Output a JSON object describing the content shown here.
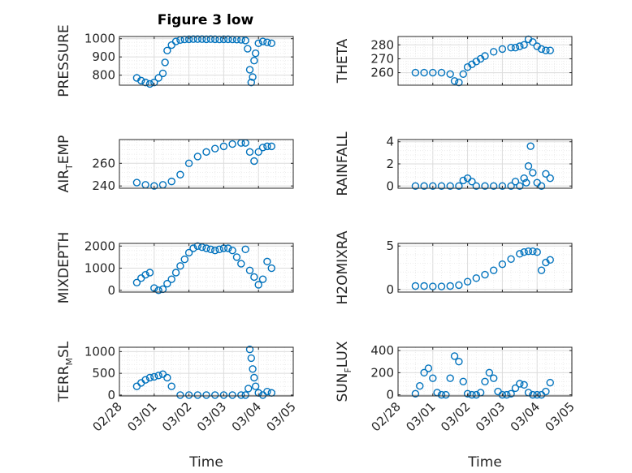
{
  "figure": {
    "title": "Figure 3 low",
    "marker_color": "#0072BD"
  },
  "chart_data": [
    {
      "type": "scatter",
      "ylabel": "PRESSURE",
      "xlabel": "",
      "title": "Figure 3 low",
      "grid": true,
      "ylim": [
        745,
        1012
      ],
      "yticks": [
        800,
        900,
        1000
      ],
      "xlim": [
        "02/28",
        "03/05"
      ],
      "xticks": [
        "02/28",
        "03/01",
        "03/02",
        "03/03",
        "03/04",
        "03/05"
      ],
      "x": [
        "02/28 12:00",
        "02/28 15:00",
        "02/28 18:00",
        "02/28 21:00",
        "03/01 00:00",
        "03/01 03:00",
        "03/01 06:00",
        "03/01 07:30",
        "03/01 09:00",
        "03/01 12:00",
        "03/01 15:00",
        "03/01 18:00",
        "03/01 21:00",
        "03/02 00:00",
        "03/02 03:00",
        "03/02 06:00",
        "03/02 09:00",
        "03/02 12:00",
        "03/02 15:00",
        "03/02 18:00",
        "03/02 21:00",
        "03/03 00:00",
        "03/03 03:00",
        "03/03 06:00",
        "03/03 09:00",
        "03/03 12:00",
        "03/03 15:00",
        "03/03 16:30",
        "03/03 18:00",
        "03/03 19:00",
        "03/03 20:00",
        "03/03 21:00",
        "03/03 22:00",
        "03/04 00:00",
        "03/04 03:00",
        "03/04 06:00",
        "03/04 09:00"
      ],
      "y": [
        785,
        770,
        760,
        752,
        760,
        785,
        810,
        870,
        935,
        965,
        985,
        993,
        996,
        997,
        998,
        998,
        998,
        997,
        998,
        997,
        996,
        997,
        997,
        996,
        995,
        994,
        990,
        945,
        830,
        760,
        790,
        880,
        920,
        975,
        985,
        980,
        975
      ]
    },
    {
      "type": "scatter",
      "ylabel": "THETA",
      "xlabel": "",
      "grid": true,
      "ylim": [
        251,
        286
      ],
      "yticks": [
        260,
        270,
        280
      ],
      "xlim": [
        "02/28",
        "03/05"
      ],
      "xticks": [
        "02/28",
        "03/01",
        "03/02",
        "03/03",
        "03/04",
        "03/05"
      ],
      "x": [
        "02/28 12:00",
        "02/28 18:00",
        "03/01 00:00",
        "03/01 06:00",
        "03/01 12:00",
        "03/01 15:00",
        "03/01 18:00",
        "03/01 21:00",
        "03/02 00:00",
        "03/02 03:00",
        "03/02 06:00",
        "03/02 09:00",
        "03/02 12:00",
        "03/02 18:00",
        "03/03 00:00",
        "03/03 06:00",
        "03/03 09:00",
        "03/03 12:00",
        "03/03 15:00",
        "03/03 18:00",
        "03/03 21:00",
        "03/04 00:00",
        "03/04 03:00",
        "03/04 06:00",
        "03/04 09:00"
      ],
      "y": [
        260,
        260,
        260,
        260,
        259,
        254,
        253,
        259,
        264,
        266,
        268,
        270,
        272,
        275,
        277,
        278,
        278,
        279,
        280,
        284,
        282,
        279,
        277,
        276,
        276
      ]
    },
    {
      "type": "scatter",
      "ylabel": "AIR_TEMP",
      "xlabel": "",
      "grid": true,
      "ylim": [
        238,
        281
      ],
      "yticks": [
        240,
        260
      ],
      "xlim": [
        "02/28",
        "03/05"
      ],
      "xticks": [
        "02/28",
        "03/01",
        "03/02",
        "03/03",
        "03/04",
        "03/05"
      ],
      "x": [
        "02/28 12:00",
        "02/28 18:00",
        "03/01 00:00",
        "03/01 06:00",
        "03/01 12:00",
        "03/01 18:00",
        "03/02 00:00",
        "03/02 06:00",
        "03/02 12:00",
        "03/02 18:00",
        "03/03 00:00",
        "03/03 06:00",
        "03/03 12:00",
        "03/03 15:00",
        "03/03 18:00",
        "03/03 21:00",
        "03/04 00:00",
        "03/04 03:00",
        "03/04 06:00",
        "03/04 09:00"
      ],
      "y": [
        243,
        241,
        240,
        241,
        244,
        250,
        260,
        266,
        270,
        273,
        275,
        277,
        278,
        278,
        270,
        262,
        270,
        274,
        275,
        275
      ]
    },
    {
      "type": "scatter",
      "ylabel": "RAINFALL",
      "xlabel": "",
      "grid": true,
      "ylim": [
        -0.2,
        4.2
      ],
      "yticks": [
        0,
        2,
        4
      ],
      "xlim": [
        "02/28",
        "03/05"
      ],
      "xticks": [
        "02/28",
        "03/01",
        "03/02",
        "03/03",
        "03/04",
        "03/05"
      ],
      "x": [
        "02/28 12:00",
        "02/28 18:00",
        "03/01 00:00",
        "03/01 06:00",
        "03/01 12:00",
        "03/01 18:00",
        "03/01 21:00",
        "03/02 00:00",
        "03/02 03:00",
        "03/02 06:00",
        "03/02 12:00",
        "03/02 18:00",
        "03/03 00:00",
        "03/03 06:00",
        "03/03 09:00",
        "03/03 12:00",
        "03/03 15:00",
        "03/03 16:30",
        "03/03 18:00",
        "03/03 19:30",
        "03/03 21:00",
        "03/04 00:00",
        "03/04 03:00",
        "03/04 06:00",
        "03/04 09:00"
      ],
      "y": [
        0,
        0,
        0,
        0,
        0,
        0,
        0.5,
        0.7,
        0.4,
        0,
        0,
        0,
        0,
        0,
        0.4,
        0,
        0.7,
        0.3,
        1.8,
        3.6,
        1.2,
        0.3,
        0,
        1.1,
        0.7
      ]
    },
    {
      "type": "scatter",
      "ylabel": "MIXDEPTH",
      "xlabel": "",
      "grid": true,
      "ylim": [
        -80,
        2120
      ],
      "yticks": [
        0,
        1000,
        2000
      ],
      "xlim": [
        "02/28",
        "03/05"
      ],
      "xticks": [
        "02/28",
        "03/01",
        "03/02",
        "03/03",
        "03/04",
        "03/05"
      ],
      "x": [
        "02/28 12:00",
        "02/28 15:00",
        "02/28 18:00",
        "02/28 21:00",
        "03/01 00:00",
        "03/01 03:00",
        "03/01 06:00",
        "03/01 09:00",
        "03/01 12:00",
        "03/01 15:00",
        "03/01 18:00",
        "03/01 21:00",
        "03/02 00:00",
        "03/02 03:00",
        "03/02 06:00",
        "03/02 09:00",
        "03/02 12:00",
        "03/02 15:00",
        "03/02 18:00",
        "03/02 21:00",
        "03/03 00:00",
        "03/03 03:00",
        "03/03 06:00",
        "03/03 09:00",
        "03/03 12:00",
        "03/03 15:00",
        "03/03 18:00",
        "03/03 21:00",
        "03/04 00:00",
        "03/04 03:00",
        "03/04 06:00",
        "03/04 09:00"
      ],
      "y": [
        350,
        550,
        700,
        800,
        100,
        0,
        50,
        300,
        500,
        800,
        1100,
        1400,
        1700,
        1900,
        2000,
        1950,
        1900,
        1850,
        1800,
        1850,
        1900,
        1900,
        1800,
        1500,
        1200,
        1850,
        900,
        600,
        250,
        500,
        1300,
        1000
      ]
    },
    {
      "type": "scatter",
      "ylabel": "H2OMIXRA",
      "xlabel": "",
      "grid": true,
      "ylim": [
        -0.3,
        5.3
      ],
      "yticks": [
        0,
        5
      ],
      "xlim": [
        "02/28",
        "03/05"
      ],
      "xticks": [
        "02/28",
        "03/01",
        "03/02",
        "03/03",
        "03/04",
        "03/05"
      ],
      "x": [
        "02/28 12:00",
        "02/28 18:00",
        "03/01 00:00",
        "03/01 06:00",
        "03/01 12:00",
        "03/01 18:00",
        "03/02 00:00",
        "03/02 06:00",
        "03/02 12:00",
        "03/02 18:00",
        "03/03 00:00",
        "03/03 06:00",
        "03/03 12:00",
        "03/03 15:00",
        "03/03 18:00",
        "03/03 21:00",
        "03/04 00:00",
        "03/04 03:00",
        "03/04 06:00",
        "03/04 09:00"
      ],
      "y": [
        0.4,
        0.4,
        0.35,
        0.35,
        0.4,
        0.5,
        0.9,
        1.3,
        1.7,
        2.2,
        2.9,
        3.5,
        4.1,
        4.3,
        4.4,
        4.4,
        4.3,
        2.2,
        3.1,
        3.4
      ]
    },
    {
      "type": "scatter",
      "ylabel": "TERR_MSL",
      "xlabel": "Time",
      "grid": true,
      "ylim": [
        -20,
        1100
      ],
      "yticks": [
        0,
        500,
        1000
      ],
      "xlim": [
        "02/28",
        "03/05"
      ],
      "xticks": [
        "02/28",
        "03/01",
        "03/02",
        "03/03",
        "03/04",
        "03/05"
      ],
      "x": [
        "02/28 12:00",
        "02/28 15:00",
        "02/28 18:00",
        "02/28 21:00",
        "03/01 00:00",
        "03/01 03:00",
        "03/01 06:00",
        "03/01 09:00",
        "03/01 12:00",
        "03/01 18:00",
        "03/02 00:00",
        "03/02 06:00",
        "03/02 12:00",
        "03/02 18:00",
        "03/03 00:00",
        "03/03 06:00",
        "03/03 12:00",
        "03/03 15:00",
        "03/03 17:00",
        "03/03 18:00",
        "03/03 19:00",
        "03/03 20:00",
        "03/03 21:00",
        "03/03 22:00",
        "03/04 00:00",
        "03/04 03:00",
        "03/04 06:00",
        "03/04 09:00"
      ],
      "y": [
        200,
        280,
        350,
        400,
        420,
        450,
        480,
        400,
        200,
        0,
        0,
        0,
        0,
        0,
        0,
        0,
        0,
        0,
        150,
        1050,
        850,
        600,
        400,
        200,
        50,
        0,
        80,
        50
      ]
    },
    {
      "type": "scatter",
      "ylabel": "SUN_FLUX",
      "xlabel": "Time",
      "grid": true,
      "ylim": [
        -10,
        430
      ],
      "yticks": [
        0,
        200,
        400
      ],
      "xlim": [
        "02/28",
        "03/05"
      ],
      "xticks": [
        "02/28",
        "03/01",
        "03/02",
        "03/03",
        "03/04",
        "03/05"
      ],
      "x": [
        "02/28 12:00",
        "02/28 15:00",
        "02/28 18:00",
        "02/28 21:00",
        "03/01 00:00",
        "03/01 03:00",
        "03/01 06:00",
        "03/01 09:00",
        "03/01 12:00",
        "03/01 15:00",
        "03/01 18:00",
        "03/01 21:00",
        "03/02 00:00",
        "03/02 03:00",
        "03/02 06:00",
        "03/02 09:00",
        "03/02 12:00",
        "03/02 15:00",
        "03/02 18:00",
        "03/02 21:00",
        "03/03 00:00",
        "03/03 03:00",
        "03/03 06:00",
        "03/03 09:00",
        "03/03 12:00",
        "03/03 15:00",
        "03/03 18:00",
        "03/03 21:00",
        "03/04 00:00",
        "03/04 03:00",
        "03/04 06:00",
        "03/04 09:00"
      ],
      "y": [
        10,
        80,
        200,
        240,
        150,
        20,
        0,
        0,
        150,
        350,
        300,
        120,
        10,
        0,
        0,
        20,
        120,
        200,
        150,
        30,
        0,
        0,
        10,
        60,
        100,
        90,
        20,
        0,
        0,
        0,
        30,
        110
      ]
    }
  ]
}
